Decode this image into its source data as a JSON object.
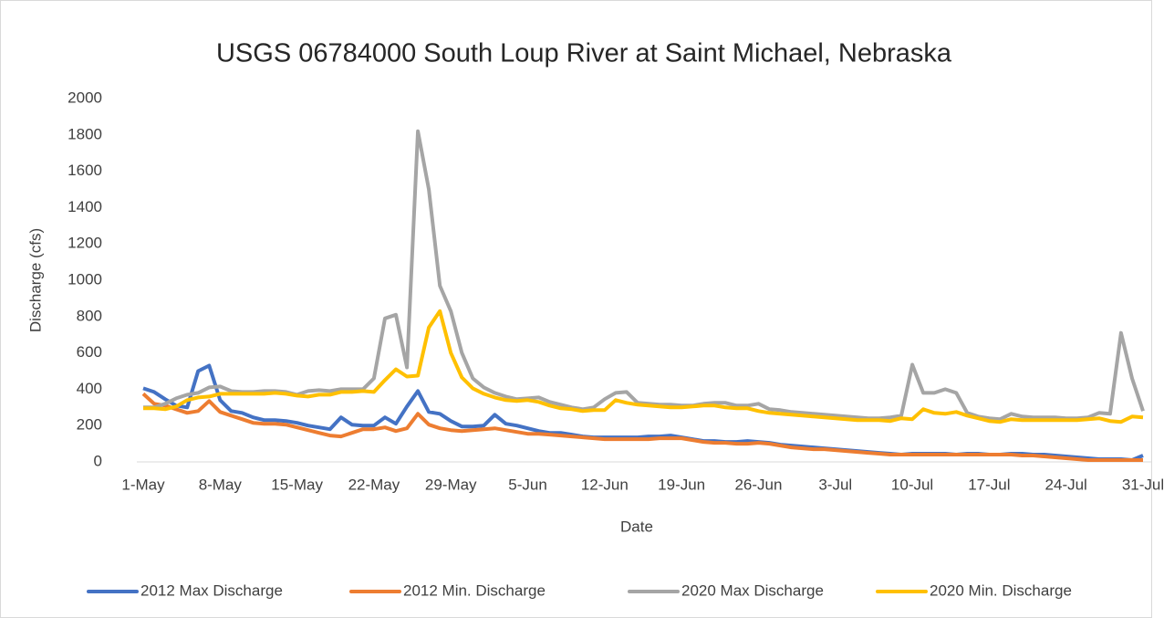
{
  "chart_data": {
    "type": "line",
    "title": "USGS 06784000 South Loup River at Saint Michael, Nebraska",
    "x_label": "Date",
    "y_label": "Discharge (cfs)",
    "categories": [
      "1-May",
      null,
      null,
      null,
      null,
      null,
      null,
      "8-May",
      null,
      null,
      null,
      null,
      null,
      null,
      "15-May",
      null,
      null,
      null,
      null,
      null,
      null,
      "22-May",
      null,
      null,
      null,
      null,
      null,
      null,
      "29-May",
      null,
      null,
      null,
      null,
      null,
      null,
      "5-Jun",
      null,
      null,
      null,
      null,
      null,
      null,
      "12-Jun",
      null,
      null,
      null,
      null,
      null,
      null,
      "19-Jun",
      null,
      null,
      null,
      null,
      null,
      null,
      "26-Jun",
      null,
      null,
      null,
      null,
      null,
      null,
      "3-Jul",
      null,
      null,
      null,
      null,
      null,
      null,
      "10-Jul",
      null,
      null,
      null,
      null,
      null,
      null,
      "17-Jul",
      null,
      null,
      null,
      null,
      null,
      null,
      "24-Jul",
      null,
      null,
      null,
      null,
      null,
      null,
      "31-Jul"
    ],
    "ylim": [
      0,
      2000
    ],
    "yticks": [
      0,
      200,
      400,
      600,
      800,
      1000,
      1200,
      1400,
      1600,
      1800,
      2000
    ],
    "grid": false,
    "legend": "bottom",
    "series": [
      {
        "name": "2012 Max Discharge",
        "color": "#4472c4",
        "values": [
          405,
          385,
          345,
          310,
          300,
          500,
          530,
          340,
          280,
          270,
          245,
          230,
          230,
          225,
          215,
          200,
          190,
          180,
          245,
          205,
          200,
          200,
          245,
          210,
          305,
          390,
          275,
          265,
          225,
          195,
          195,
          200,
          260,
          210,
          200,
          185,
          170,
          160,
          160,
          150,
          140,
          135,
          135,
          135,
          135,
          135,
          140,
          140,
          145,
          135,
          125,
          115,
          115,
          110,
          110,
          115,
          110,
          105,
          95,
          90,
          85,
          80,
          75,
          70,
          65,
          60,
          55,
          50,
          45,
          40,
          45,
          45,
          45,
          45,
          40,
          45,
          45,
          40,
          40,
          45,
          45,
          40,
          40,
          35,
          30,
          25,
          20,
          15,
          15,
          15,
          10,
          35
        ]
      },
      {
        "name": "2012 Min. Discharge",
        "color": "#ed7d31",
        "values": [
          375,
          320,
          310,
          290,
          270,
          280,
          335,
          275,
          255,
          235,
          215,
          210,
          210,
          205,
          190,
          175,
          160,
          145,
          140,
          160,
          180,
          180,
          190,
          170,
          185,
          265,
          205,
          185,
          175,
          170,
          175,
          180,
          185,
          175,
          165,
          155,
          155,
          150,
          145,
          140,
          135,
          130,
          125,
          125,
          125,
          125,
          125,
          130,
          130,
          130,
          120,
          110,
          105,
          105,
          100,
          100,
          105,
          100,
          90,
          80,
          75,
          70,
          70,
          65,
          60,
          55,
          50,
          45,
          40,
          40,
          40,
          40,
          40,
          40,
          40,
          40,
          40,
          40,
          40,
          40,
          35,
          35,
          30,
          25,
          20,
          15,
          10,
          10,
          10,
          10,
          10,
          10
        ]
      },
      {
        "name": "2020 Max Discharge",
        "color": "#a5a5a5",
        "values": [
          300,
          300,
          320,
          350,
          370,
          380,
          410,
          415,
          390,
          385,
          385,
          390,
          390,
          385,
          370,
          390,
          395,
          390,
          400,
          400,
          400,
          460,
          790,
          810,
          520,
          1820,
          1500,
          970,
          830,
          600,
          460,
          410,
          380,
          360,
          345,
          350,
          355,
          330,
          315,
          300,
          290,
          300,
          345,
          380,
          385,
          325,
          320,
          315,
          315,
          310,
          310,
          320,
          325,
          325,
          310,
          310,
          320,
          290,
          285,
          275,
          270,
          265,
          260,
          255,
          250,
          245,
          240,
          240,
          245,
          255,
          535,
          380,
          380,
          400,
          380,
          270,
          250,
          240,
          235,
          265,
          250,
          245,
          245,
          245,
          240,
          240,
          245,
          270,
          265,
          710,
          460,
          280
        ]
      },
      {
        "name": "2020 Min. Discharge",
        "color": "#ffc000",
        "values": [
          295,
          295,
          290,
          305,
          340,
          355,
          360,
          375,
          375,
          375,
          375,
          375,
          380,
          375,
          365,
          360,
          370,
          370,
          385,
          385,
          390,
          385,
          450,
          510,
          470,
          475,
          740,
          830,
          600,
          465,
          405,
          375,
          355,
          340,
          335,
          340,
          330,
          310,
          295,
          290,
          280,
          285,
          285,
          340,
          325,
          315,
          310,
          305,
          300,
          300,
          305,
          310,
          310,
          300,
          295,
          295,
          280,
          270,
          265,
          260,
          255,
          250,
          245,
          240,
          235,
          230,
          230,
          230,
          225,
          240,
          235,
          290,
          270,
          265,
          275,
          255,
          240,
          225,
          220,
          235,
          230,
          230,
          230,
          230,
          230,
          230,
          235,
          240,
          225,
          220,
          250,
          245
        ]
      }
    ]
  }
}
